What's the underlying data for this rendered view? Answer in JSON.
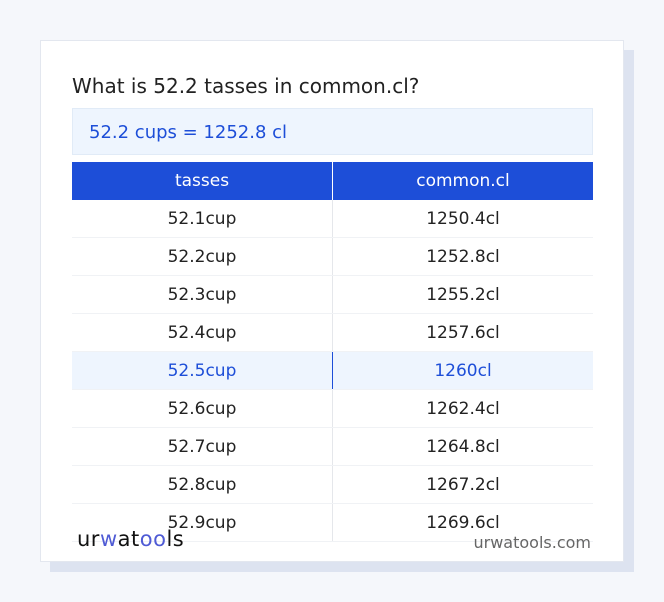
{
  "title": "What is 52.2 tasses in common.cl?",
  "result": "52.2 cups = 1252.8 cl",
  "table": {
    "headers": [
      "tasses",
      "common.cl"
    ],
    "rows": [
      [
        "52.1cup",
        "1250.4cl"
      ],
      [
        "52.2cup",
        "1252.8cl"
      ],
      [
        "52.3cup",
        "1255.2cl"
      ],
      [
        "52.4cup",
        "1257.6cl"
      ],
      [
        "52.5cup",
        "1260cl"
      ],
      [
        "52.6cup",
        "1262.4cl"
      ],
      [
        "52.7cup",
        "1264.8cl"
      ],
      [
        "52.8cup",
        "1267.2cl"
      ],
      [
        "52.9cup",
        "1269.6cl"
      ]
    ],
    "highlighted_row": 4
  },
  "footer": {
    "logo": "urwatools",
    "site": "urwatools.com"
  },
  "colors": {
    "accent": "#1d4ed8",
    "highlight_bg": "#eef5fe"
  }
}
